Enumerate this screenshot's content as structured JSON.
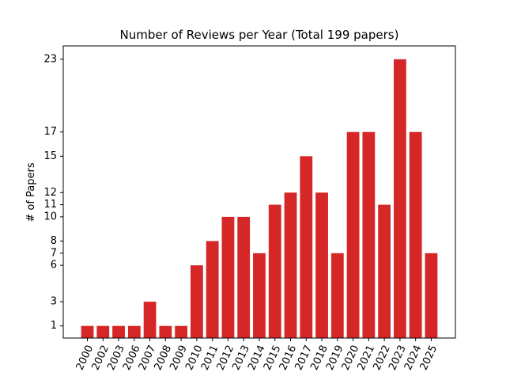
{
  "chart_data": {
    "type": "bar",
    "title": "Number of Reviews per Year (Total 199 papers)",
    "xlabel": "",
    "ylabel": "# of Papers",
    "categories": [
      "2000",
      "2002",
      "2003",
      "2006",
      "2007",
      "2008",
      "2009",
      "2010",
      "2011",
      "2012",
      "2013",
      "2014",
      "2015",
      "2016",
      "2017",
      "2018",
      "2019",
      "2020",
      "2021",
      "2022",
      "2023",
      "2024",
      "2025"
    ],
    "values": [
      1,
      1,
      1,
      1,
      3,
      1,
      1,
      6,
      8,
      10,
      10,
      7,
      11,
      12,
      15,
      12,
      7,
      17,
      17,
      11,
      23,
      17,
      7
    ],
    "yticks": [
      1,
      3,
      6,
      7,
      8,
      10,
      11,
      12,
      15,
      17,
      23
    ],
    "ylim": [
      0,
      24.1
    ],
    "bar_color": "#d62728",
    "grid": false,
    "legend": "none"
  }
}
